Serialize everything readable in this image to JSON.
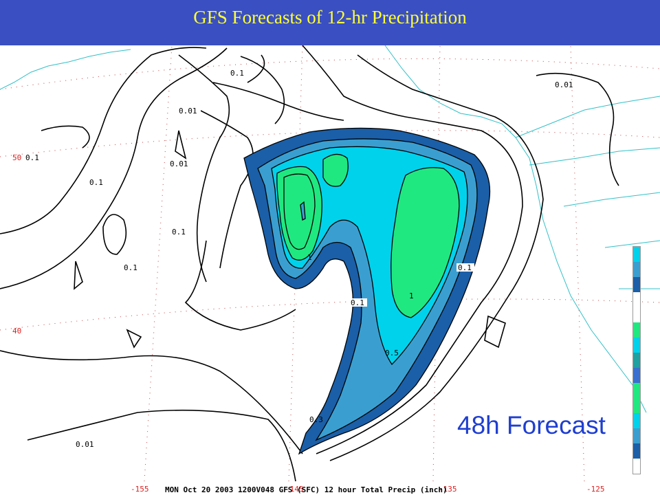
{
  "title": "GFS Forecasts of 12-hr Precipitation",
  "forecast_label": "48h Forecast",
  "footer_caption": "MON Oct 20 2003 1200V048 GFS (SFC) 12 hour Total Precip (inch)",
  "latitude_labels": [
    "50",
    "40"
  ],
  "longitude_labels": [
    "-155",
    "-145",
    "-135",
    "-125"
  ],
  "contour_labels": {
    "c1": "0.1",
    "c2": "0.01",
    "c3": "0.01",
    "c4": "0.1",
    "c5": "0.01",
    "c6": "0.1",
    "c7": "0.1",
    "c8": "0.1",
    "c9": "1",
    "c10": "0.1",
    "c11": "1",
    "c12": "0.1",
    "c13": "0.5",
    "c14": "0.3",
    "c15": "0.01"
  },
  "colors": {
    "title_bar": "#3a4fc2",
    "title_text": "#ffff33",
    "forecast_label": "#1f3fd0",
    "precip_0_3": "#1a5fa8",
    "precip_0_5": "#3a9fd0",
    "precip_0_75": "#00d2ec",
    "precip_1_0": "#20e880",
    "coastline": "#30c0c8"
  }
}
